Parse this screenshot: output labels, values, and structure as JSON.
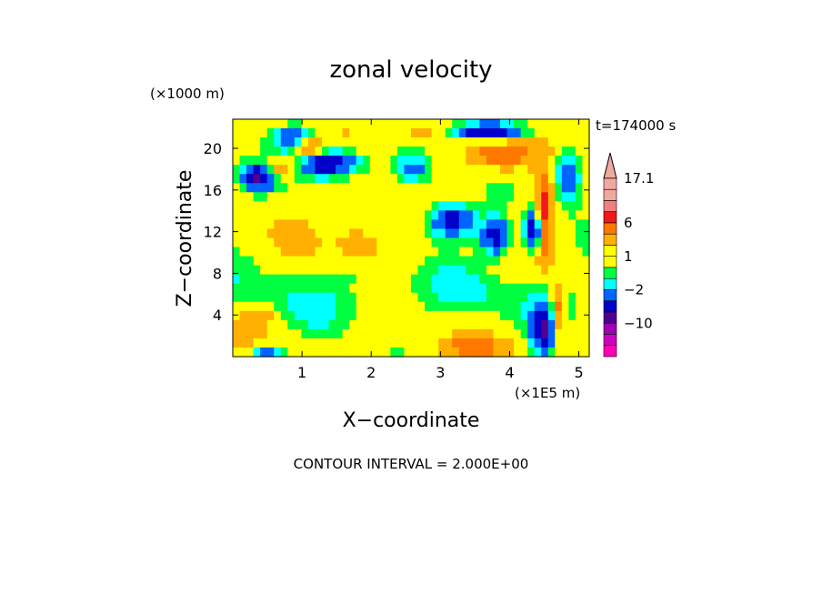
{
  "chart_data": {
    "type": "heatmap",
    "title": "zonal velocity",
    "xlabel": "X−coordinate",
    "ylabel": "Z−coordinate",
    "x_unit": "(×1E5 m)",
    "y_unit": "(×1000 m)",
    "time_label": "t=174000 s",
    "footer": "CONTOUR INTERVAL = 2.000E+00",
    "xlim": [
      0,
      5.15
    ],
    "ylim": [
      0,
      22.8
    ],
    "x_ticks": [
      1,
      2,
      3,
      4,
      5
    ],
    "y_ticks": [
      4,
      8,
      12,
      16,
      20
    ],
    "colorbar": {
      "labels": [
        {
          "value": 17.1,
          "text": "17.1"
        },
        {
          "value": 6,
          "text": "6"
        },
        {
          "value": 1,
          "text": "1"
        },
        {
          "value": -2,
          "text": "−2"
        },
        {
          "value": -10,
          "text": "−10"
        }
      ],
      "levels": [
        {
          "max": 17.1,
          "color": "#f0a8a0"
        },
        {
          "max": 14,
          "color": "#f0a8a0"
        },
        {
          "max": 10,
          "color": "#f08080"
        },
        {
          "max": 8,
          "color": "#f01818"
        },
        {
          "max": 6,
          "color": "#ff7800"
        },
        {
          "max": 4,
          "color": "#ffb000"
        },
        {
          "max": 2,
          "color": "#ffff00"
        },
        {
          "max": 1,
          "color": "#ffff00"
        },
        {
          "max": 0,
          "color": "#00ff40"
        },
        {
          "max": -1,
          "color": "#00ffff"
        },
        {
          "max": -2,
          "color": "#0064ff"
        },
        {
          "max": -4,
          "color": "#0000c8"
        },
        {
          "max": -6,
          "color": "#500090"
        },
        {
          "max": -10,
          "color": "#a000b4"
        },
        {
          "max": -14,
          "color": "#d000c0"
        },
        {
          "max": -18,
          "color": "#ff00b4"
        }
      ]
    },
    "grid_cols": 52,
    "grid_rows": 26,
    "features": [
      {
        "x": 0.9,
        "z": 21.0,
        "v": -5,
        "rx": 0.35,
        "rz": 1.3
      },
      {
        "x": 1.4,
        "z": 18.6,
        "v": -8,
        "rx": 0.5,
        "rz": 1.4
      },
      {
        "x": 0.35,
        "z": 17.2,
        "v": -7,
        "rx": 0.25,
        "rz": 1.3
      },
      {
        "x": 3.7,
        "z": 21.6,
        "v": -9,
        "rx": 0.5,
        "rz": 1.0
      },
      {
        "x": 3.15,
        "z": 13.2,
        "v": -7,
        "rx": 0.35,
        "rz": 1.8
      },
      {
        "x": 3.8,
        "z": 11.5,
        "v": -7,
        "rx": 0.22,
        "rz": 1.8
      },
      {
        "x": 2.6,
        "z": 17.8,
        "v": -4,
        "rx": 0.3,
        "rz": 1.5
      },
      {
        "x": 4.35,
        "z": 12.0,
        "v": -9,
        "rx": 0.14,
        "rz": 1.8
      },
      {
        "x": 4.85,
        "z": 17.5,
        "v": -6,
        "rx": 0.22,
        "rz": 2.5
      },
      {
        "x": 4.5,
        "z": 2.5,
        "v": -7,
        "rx": 0.18,
        "rz": 2.2
      },
      {
        "x": 0.5,
        "z": 0.3,
        "v": -5,
        "rx": 0.25,
        "rz": 0.8
      },
      {
        "x": 1.1,
        "z": 20.0,
        "v": 6,
        "rx": 0.22,
        "rz": 1.0
      },
      {
        "x": 0.7,
        "z": 18.2,
        "v": 5,
        "rx": 0.25,
        "rz": 1.0
      },
      {
        "x": 3.9,
        "z": 19.5,
        "v": 5,
        "rx": 0.45,
        "rz": 1.6
      },
      {
        "x": 4.5,
        "z": 13.5,
        "v": 7,
        "rx": 0.12,
        "rz": 4.0
      },
      {
        "x": 4.7,
        "z": 4.0,
        "v": 6,
        "rx": 0.1,
        "rz": 3.0
      },
      {
        "x": 1.85,
        "z": 11.0,
        "v": 3,
        "rx": 0.35,
        "rz": 1.6
      },
      {
        "x": 0.35,
        "z": 3.8,
        "v": 3,
        "rx": 0.25,
        "rz": 0.9
      },
      {
        "x": 2.7,
        "z": 21.2,
        "v": 3,
        "rx": 0.35,
        "rz": 1.0
      },
      {
        "x": 3.5,
        "z": 1.0,
        "v": 3,
        "rx": 0.5,
        "rz": 0.9
      },
      {
        "x": 1.6,
        "z": 7.8,
        "v": -1,
        "rx": 0.22,
        "rz": 1.0
      },
      {
        "x": 2.4,
        "z": 4.2,
        "v": -1,
        "rx": 0.2,
        "rz": 1.0
      },
      {
        "x": 1.35,
        "z": 3.2,
        "v": -0.5,
        "rx": 0.4,
        "rz": 1.8
      },
      {
        "x": 3.3,
        "z": 5.0,
        "v": -0.5,
        "rx": 0.3,
        "rz": 1.5
      }
    ]
  }
}
